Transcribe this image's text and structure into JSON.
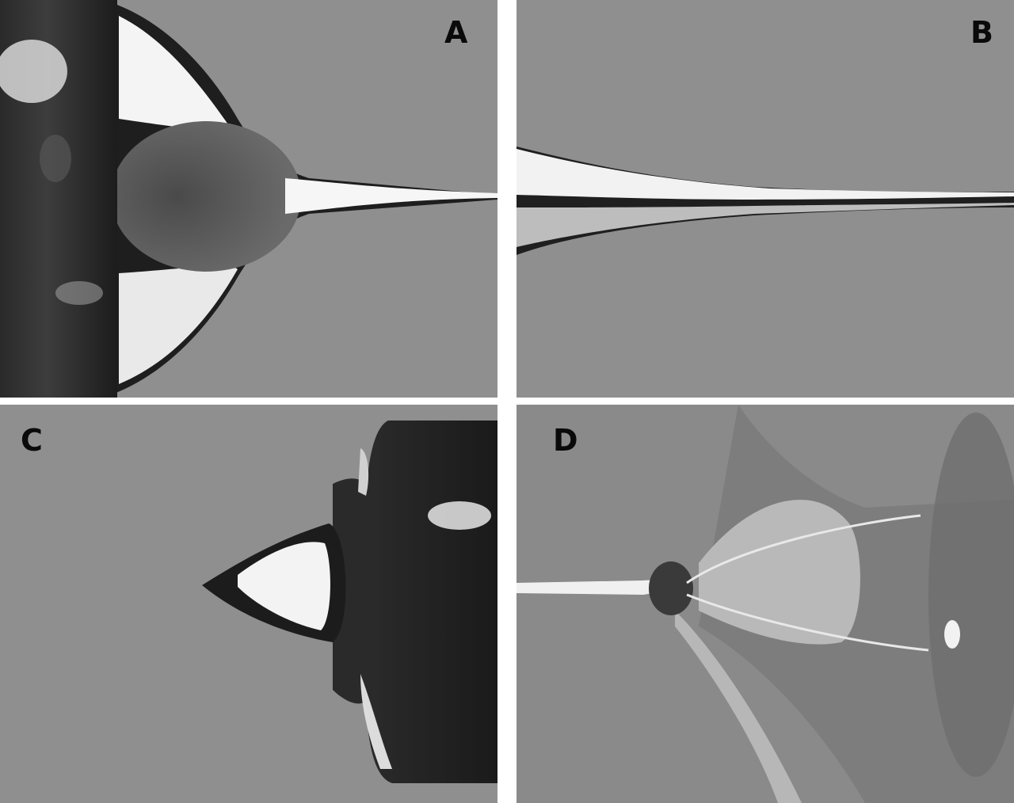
{
  "panels": [
    {
      "id": "A",
      "label": "A"
    },
    {
      "id": "B",
      "label": "B"
    },
    {
      "id": "C",
      "label": "C"
    },
    {
      "id": "D",
      "label": "D"
    }
  ],
  "colors": {
    "background": "#8f8f8f",
    "separator": "#ffffff",
    "label": "#0a0a0a"
  }
}
